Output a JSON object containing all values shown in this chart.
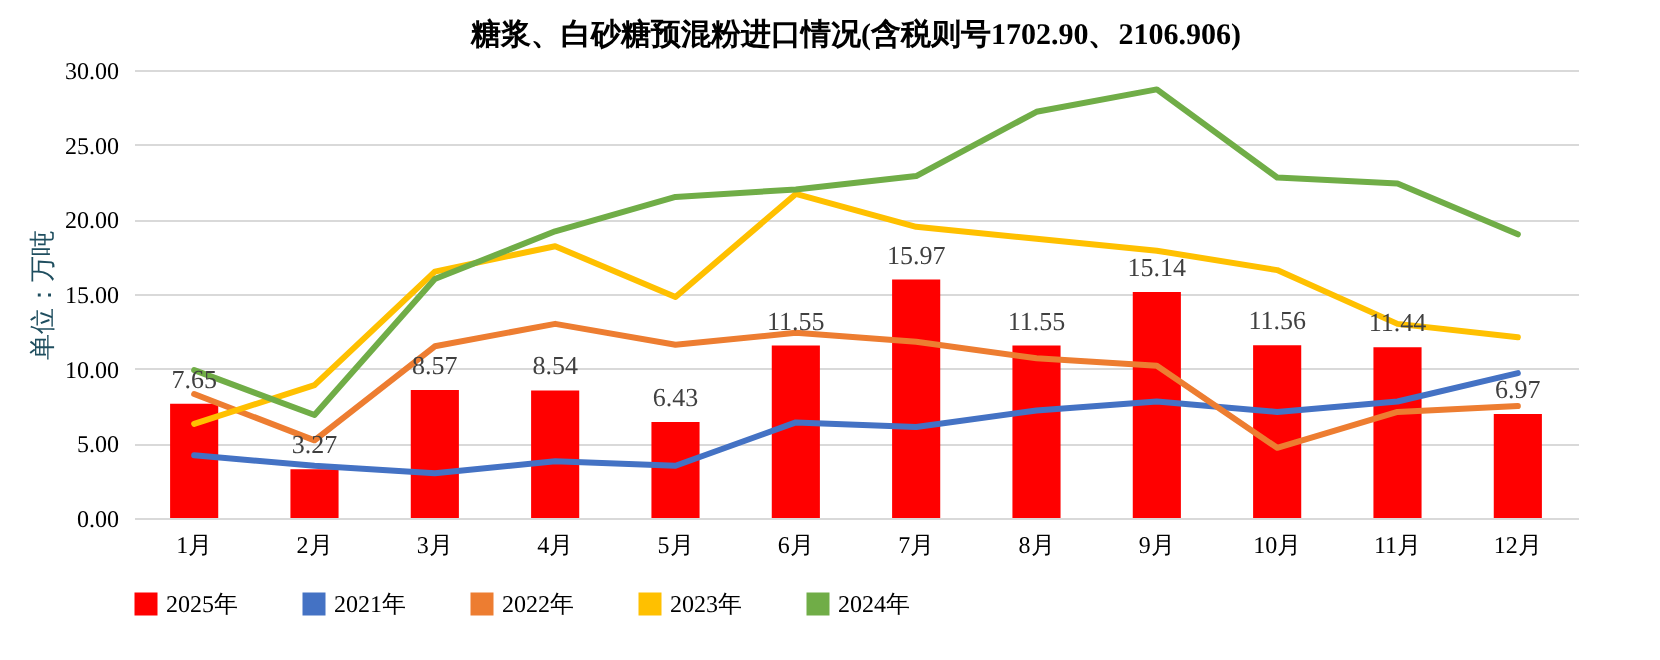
{
  "chart_data": {
    "type": "bar",
    "title": "糖浆、白砂糖预混粉进口情况(含税则号1702.90、2106.906)",
    "ylabel": "单位：万吨",
    "categories": [
      "1月",
      "2月",
      "3月",
      "4月",
      "5月",
      "6月",
      "7月",
      "8月",
      "9月",
      "10月",
      "11月",
      "12月"
    ],
    "series": [
      {
        "name": "2025年",
        "color": "#ff0000",
        "values": [
          7.65,
          3.27,
          8.57,
          8.54,
          6.43,
          11.55,
          15.97,
          11.55,
          15.14,
          11.56,
          11.44,
          6.97
        ],
        "data_labels": true
      },
      {
        "name": "2021年",
        "type": "line",
        "color": "#4472c4",
        "values": [
          4.2,
          3.5,
          3.0,
          3.8,
          3.5,
          6.4,
          6.1,
          7.2,
          7.8,
          7.1,
          7.8,
          9.7
        ]
      },
      {
        "name": "2022年",
        "type": "line",
        "color": "#ed7d31",
        "values": [
          8.3,
          5.2,
          11.5,
          13.0,
          11.6,
          12.4,
          11.8,
          10.7,
          10.2,
          4.7,
          7.1,
          7.5
        ]
      },
      {
        "name": "2023年",
        "type": "line",
        "color": "#ffc000",
        "values": [
          6.3,
          8.9,
          16.5,
          18.2,
          14.8,
          21.7,
          19.5,
          18.7,
          17.9,
          16.6,
          13.0,
          12.1
        ]
      },
      {
        "name": "2024年",
        "type": "line",
        "color": "#70ad47",
        "values": [
          9.9,
          6.9,
          16.0,
          19.2,
          21.5,
          22.0,
          22.9,
          27.2,
          28.7,
          22.8,
          22.4,
          19.0
        ]
      }
    ],
    "ylim": [
      0,
      30
    ],
    "yticks": [
      {
        "value": 0,
        "label": "0.00"
      },
      {
        "value": 5,
        "label": "5.00"
      },
      {
        "value": 10,
        "label": "10.00"
      },
      {
        "value": 15,
        "label": "15.00"
      },
      {
        "value": 20,
        "label": "20.00"
      },
      {
        "value": 25,
        "label": "25.00"
      },
      {
        "value": 30,
        "label": "30.00"
      }
    ],
    "grid": "y",
    "legend": "bottom"
  }
}
